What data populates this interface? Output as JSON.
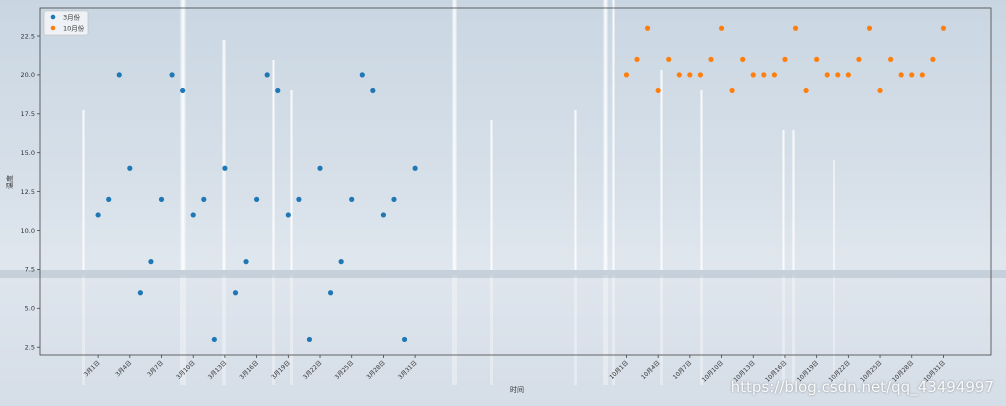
{
  "chart_data": {
    "type": "scatter",
    "title": "",
    "xlabel": "时间",
    "ylabel": "温度",
    "ylim": [
      2.0,
      24.3
    ],
    "yticks": [
      2.5,
      5.0,
      7.5,
      10.0,
      12.5,
      15.0,
      17.5,
      20.0,
      22.5
    ],
    "xlim": [
      -5.5,
      84.5
    ],
    "grid": false,
    "legend_position": "top-left",
    "x_tick_positions": [
      0,
      3,
      6,
      9,
      12,
      15,
      18,
      21,
      24,
      27,
      30,
      50,
      53,
      56,
      59,
      62,
      65,
      68,
      71,
      74,
      77,
      80
    ],
    "x_tick_labels": [
      "3月1日",
      "3月4日",
      "3月7日",
      "3月10日",
      "3月13日",
      "3月16日",
      "3月19日",
      "3月22日",
      "3月25日",
      "3月28日",
      "3月31日",
      "10月1日",
      "10月4日",
      "10月7日",
      "10月10日",
      "10月13日",
      "10月16日",
      "10月19日",
      "10月22日",
      "10月25日",
      "10月28日",
      "10月31日"
    ],
    "series": [
      {
        "name": "3月份",
        "color": "#1f77b4",
        "x": [
          0,
          1,
          2,
          3,
          4,
          5,
          6,
          7,
          8,
          9,
          10,
          11,
          12,
          13,
          14,
          15,
          16,
          17,
          18,
          19,
          20,
          21,
          22,
          23,
          24,
          25,
          26,
          27,
          28,
          29,
          30
        ],
        "y": [
          11,
          12,
          20,
          14,
          6,
          8,
          12,
          20,
          19,
          11,
          12,
          3,
          14,
          6,
          8,
          12,
          20,
          19,
          11,
          12,
          3,
          14,
          6,
          8,
          12,
          20,
          19,
          11,
          12,
          3,
          14
        ]
      },
      {
        "name": "10月份",
        "color": "#ff7f0e",
        "x": [
          50,
          51,
          52,
          53,
          54,
          55,
          56,
          57,
          58,
          59,
          60,
          61,
          62,
          63,
          64,
          65,
          66,
          67,
          68,
          69,
          70,
          71,
          72,
          73,
          74,
          75,
          76,
          77,
          78,
          79,
          80
        ],
        "y": [
          20,
          21,
          23,
          19,
          21,
          20,
          20,
          20,
          21,
          23,
          19,
          21,
          20,
          20,
          20,
          21,
          23,
          19,
          21,
          20,
          20,
          20,
          21,
          23,
          19,
          21,
          20,
          20,
          20,
          21,
          23
        ]
      }
    ]
  },
  "watermark": "https://blog.csdn.net/qq_43494997"
}
